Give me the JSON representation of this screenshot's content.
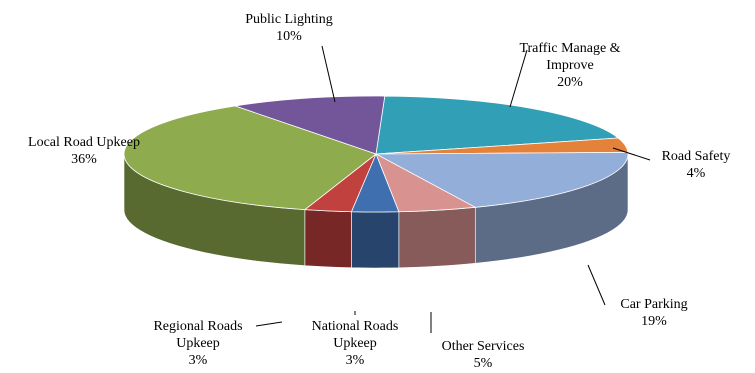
{
  "chart_data": {
    "type": "pie",
    "title": "",
    "slices": [
      {
        "label": "Traffic Manage & Improve",
        "label_lines": [
          "Traffic Manage &",
          "Improve"
        ],
        "value": 20,
        "value_text": "20%",
        "color": "#31A0B6"
      },
      {
        "label": "Road Safety",
        "label_lines": [
          "Road Safety"
        ],
        "value": 4,
        "value_text": "4%",
        "color": "#E5823A"
      },
      {
        "label": "Car Parking",
        "label_lines": [
          "Car Parking"
        ],
        "value": 19,
        "value_text": "19%",
        "color": "#94AEDA"
      },
      {
        "label": "Other Services",
        "label_lines": [
          "Other Services"
        ],
        "value": 5,
        "value_text": "5%",
        "color": "#D89391"
      },
      {
        "label": "National Roads Upkeep",
        "label_lines": [
          "National Roads",
          "Upkeep"
        ],
        "value": 3,
        "value_text": "3%",
        "color": "#3F6FAE"
      },
      {
        "label": "Regional Roads Upkeep",
        "label_lines": [
          "Regional Roads",
          "Upkeep"
        ],
        "value": 3,
        "value_text": "3%",
        "color": "#C0413E"
      },
      {
        "label": "Local Road Upkeep",
        "label_lines": [
          "Local Road Upkeep"
        ],
        "value": 36,
        "value_text": "36%",
        "color": "#8EAB4E"
      },
      {
        "label": "Public Lighting",
        "label_lines": [
          "Public Lighting"
        ],
        "value": 10,
        "value_text": "10%",
        "color": "#73569A"
      }
    ]
  }
}
